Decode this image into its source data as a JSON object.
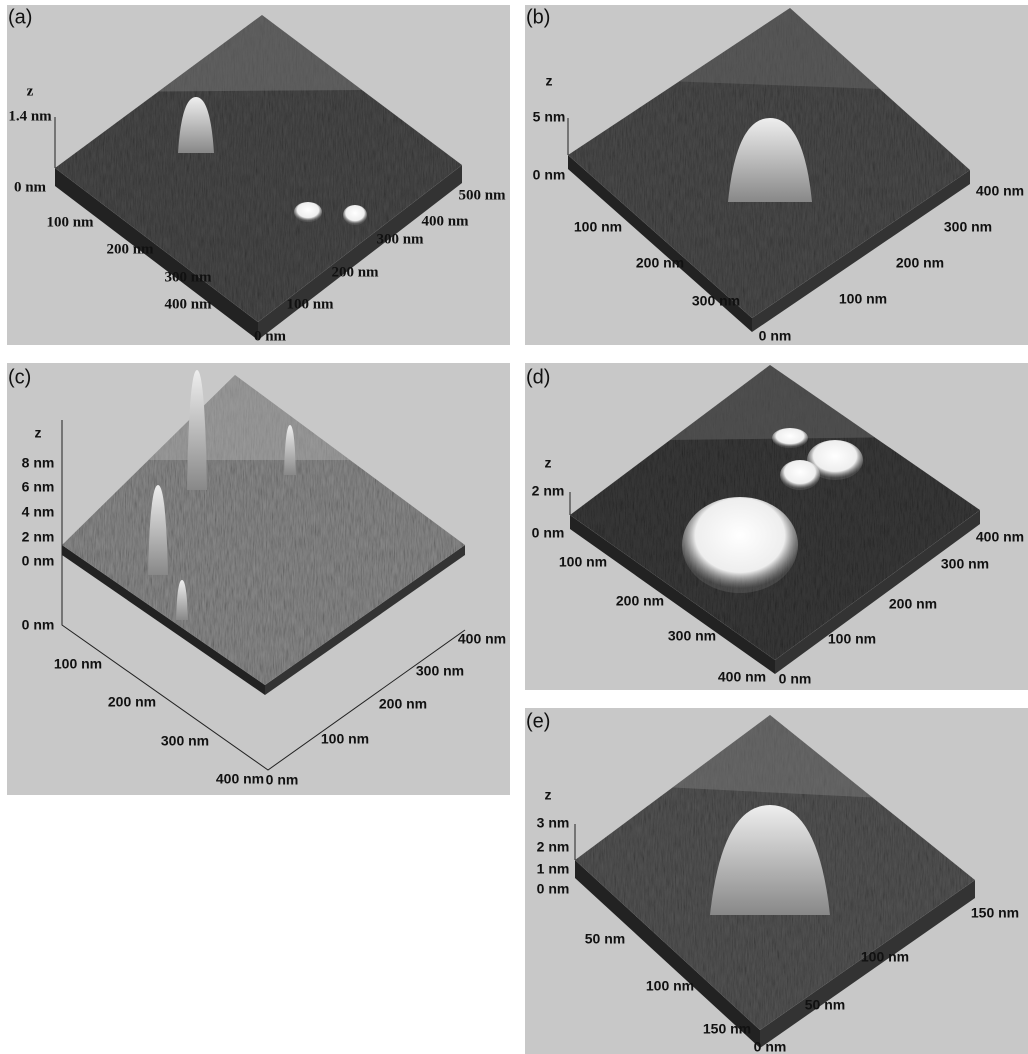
{
  "panels": [
    {
      "label": "(a)",
      "z_label": "z",
      "z_ticks": [
        "1.4 nm",
        "0 nm"
      ],
      "left_axis_ticks": [
        "100 nm",
        "200 nm",
        "300 nm",
        "400 nm"
      ],
      "right_axis_ticks": [
        "0 nm",
        "100 nm",
        "200 nm",
        "300 nm",
        "400 nm",
        "500 nm"
      ]
    },
    {
      "label": "(b)",
      "z_label": "z",
      "z_ticks": [
        "5 nm",
        "0 nm"
      ],
      "left_axis_ticks": [
        "100 nm",
        "200 nm",
        "300 nm"
      ],
      "right_axis_ticks": [
        "0 nm",
        "100 nm",
        "200 nm",
        "300 nm",
        "400 nm"
      ]
    },
    {
      "label": "(c)",
      "z_label": "z",
      "z_ticks": [
        "8 nm",
        "6 nm",
        "4 nm",
        "2 nm",
        "0 nm",
        "0 nm"
      ],
      "left_axis_ticks": [
        "100 nm",
        "200 nm",
        "300 nm",
        "400 nm"
      ],
      "right_axis_ticks": [
        "0 nm",
        "100 nm",
        "200 nm",
        "300 nm",
        "400 nm"
      ]
    },
    {
      "label": "(d)",
      "z_label": "z",
      "z_ticks": [
        "2 nm",
        "0 nm"
      ],
      "left_axis_ticks": [
        "100 nm",
        "200 nm",
        "300 nm",
        "400 nm"
      ],
      "right_axis_ticks": [
        "0 nm",
        "100 nm",
        "200 nm",
        "300 nm",
        "400 nm"
      ]
    },
    {
      "label": "(e)",
      "z_label": "z",
      "z_ticks": [
        "3 nm",
        "2 nm",
        "1 nm",
        "0 nm"
      ],
      "left_axis_ticks": [
        "50 nm",
        "100 nm",
        "150 nm"
      ],
      "right_axis_ticks": [
        "0 nm",
        "50 nm",
        "100 nm",
        "150 nm"
      ]
    }
  ]
}
